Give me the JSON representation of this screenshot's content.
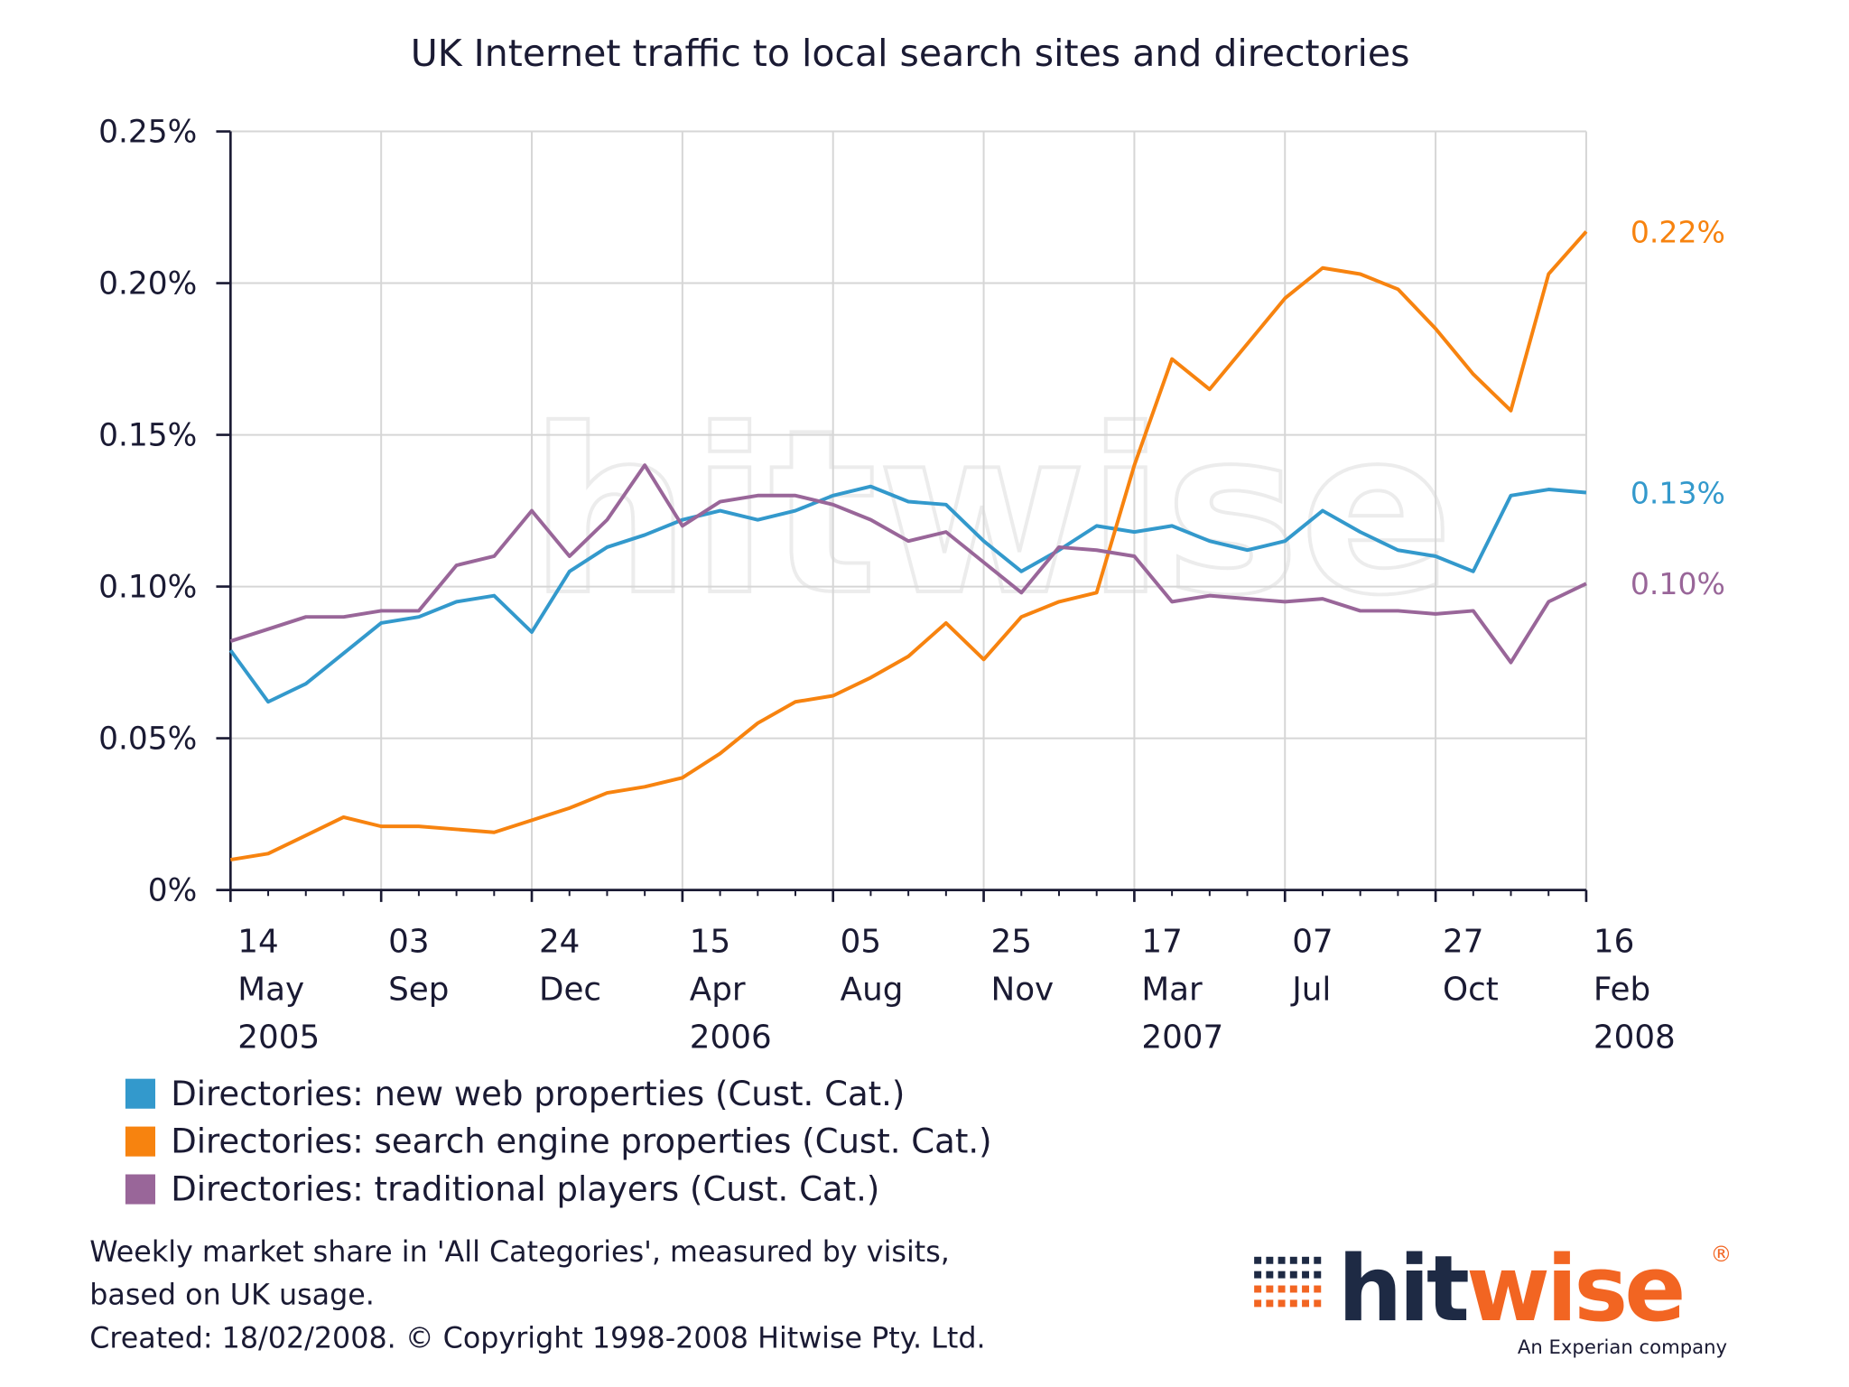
{
  "chart_data": {
    "type": "line",
    "title": "UK Internet traffic to local search sites and directories",
    "watermark": "hitwise",
    "x": [
      "2005-05-14",
      "2005-06-11",
      "2005-07-09",
      "2005-08-06",
      "2005-09-03",
      "2005-10-01",
      "2005-10-29",
      "2005-11-26",
      "2005-12-24",
      "2006-01-21",
      "2006-02-18",
      "2006-03-18",
      "2006-04-15",
      "2006-05-13",
      "2006-06-10",
      "2006-07-08",
      "2006-08-05",
      "2006-09-02",
      "2006-09-30",
      "2006-10-28",
      "2006-11-25",
      "2006-12-23",
      "2007-01-20",
      "2007-02-17",
      "2007-03-17",
      "2007-04-14",
      "2007-05-12",
      "2007-06-09",
      "2007-07-07",
      "2007-08-04",
      "2007-09-01",
      "2007-09-29",
      "2007-10-27",
      "2007-11-24",
      "2007-12-22",
      "2008-01-19",
      "2008-02-16"
    ],
    "series": [
      {
        "name": "Directories: new web properties (Cust. Cat.)",
        "color": "#3399cc",
        "end_label": "0.13%",
        "values": [
          0.079,
          0.062,
          0.068,
          0.078,
          0.088,
          0.09,
          0.095,
          0.097,
          0.085,
          0.105,
          0.113,
          0.117,
          0.122,
          0.125,
          0.122,
          0.125,
          0.13,
          0.133,
          0.128,
          0.127,
          0.115,
          0.105,
          0.112,
          0.12,
          0.118,
          0.12,
          0.115,
          0.112,
          0.115,
          0.125,
          0.118,
          0.112,
          0.11,
          0.105,
          0.13,
          0.132,
          0.131
        ]
      },
      {
        "name": "Directories: search engine properties (Cust. Cat.)",
        "color": "#f7830f",
        "end_label": "0.22%",
        "values": [
          0.01,
          0.012,
          0.018,
          0.024,
          0.021,
          0.021,
          0.02,
          0.019,
          0.023,
          0.027,
          0.032,
          0.034,
          0.037,
          0.045,
          0.055,
          0.062,
          0.064,
          0.07,
          0.077,
          0.088,
          0.076,
          0.09,
          0.095,
          0.098,
          0.14,
          0.175,
          0.165,
          0.18,
          0.195,
          0.205,
          0.203,
          0.198,
          0.185,
          0.17,
          0.158,
          0.203,
          0.217
        ]
      },
      {
        "name": "Directories: traditional players (Cust. Cat.)",
        "color": "#996699",
        "end_label": "0.10%",
        "values": [
          0.082,
          0.086,
          0.09,
          0.09,
          0.092,
          0.092,
          0.107,
          0.11,
          0.125,
          0.11,
          0.122,
          0.14,
          0.12,
          0.128,
          0.13,
          0.13,
          0.127,
          0.122,
          0.115,
          0.118,
          0.108,
          0.098,
          0.113,
          0.112,
          0.11,
          0.095,
          0.097,
          0.096,
          0.095,
          0.096,
          0.092,
          0.092,
          0.091,
          0.092,
          0.075,
          0.095,
          0.101
        ]
      }
    ],
    "xlim": [
      "2005-05-14",
      "2008-02-16"
    ],
    "xticks": [
      {
        "value": "2005-05-14",
        "label": "14 May 2005"
      },
      {
        "value": "2005-09-03",
        "label": "03 Sep"
      },
      {
        "value": "2005-12-24",
        "label": "24 Dec"
      },
      {
        "value": "2006-04-15",
        "label": "15 Apr 2006"
      },
      {
        "value": "2006-08-05",
        "label": "05 Aug"
      },
      {
        "value": "2006-11-25",
        "label": "25 Nov"
      },
      {
        "value": "2007-03-17",
        "label": "17 Mar 2007"
      },
      {
        "value": "2007-07-07",
        "label": "07 Jul"
      },
      {
        "value": "2007-10-27",
        "label": "27 Oct"
      },
      {
        "value": "2008-02-16",
        "label": "16 Feb 2008"
      }
    ],
    "ylim": [
      0,
      0.25
    ],
    "yticks": [
      {
        "value": 0,
        "label": "0%"
      },
      {
        "value": 0.05,
        "label": "0.05%"
      },
      {
        "value": 0.1,
        "label": "0.10%"
      },
      {
        "value": 0.15,
        "label": "0.15%"
      },
      {
        "value": 0.2,
        "label": "0.20%"
      },
      {
        "value": 0.25,
        "label": "0.25%"
      }
    ],
    "grid": true,
    "footnote": [
      "Weekly market share in 'All Categories', measured by visits,",
      "based on UK usage.",
      "Created: 18/02/2008. © Copyright 1998-2008 Hitwise Pty. Ltd."
    ],
    "logo": [
      "hit",
      "wise"
    ],
    "logo_mark": "®",
    "logo_tagline": "An Experian company"
  }
}
